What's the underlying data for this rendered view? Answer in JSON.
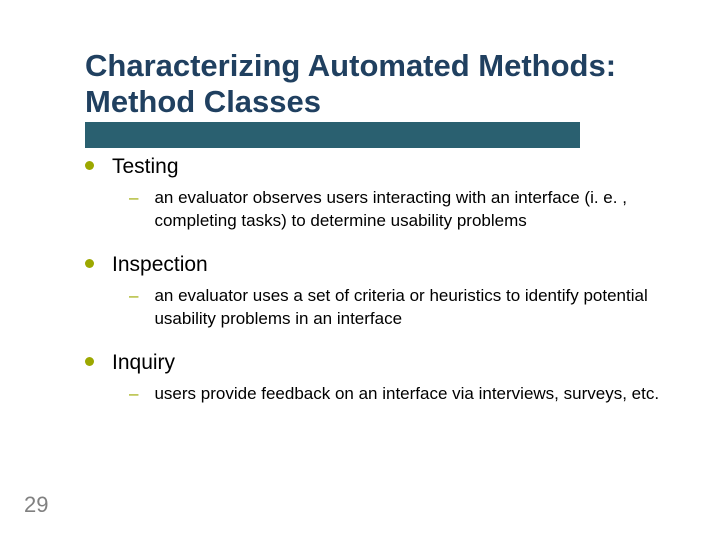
{
  "colors": {
    "title_color": "#204060",
    "underline_color": "#2a6070",
    "bullet_color": "#9ca800",
    "dash_color": "#9ca800",
    "body_text_color": "#000000",
    "page_number_color": "#808080",
    "background": "#ffffff"
  },
  "typography": {
    "title_fontsize": 31,
    "top_item_fontsize": 21,
    "sub_item_fontsize": 17,
    "page_number_fontsize": 22,
    "font_family": "Arial"
  },
  "layout": {
    "underline_width": 495,
    "underline_height": 26
  },
  "title": "Characterizing Automated Methods: Method Classes",
  "items": [
    {
      "label": "Testing",
      "sub": "an evaluator observes users interacting with an interface (i. e. , completing tasks) to determine usability problems"
    },
    {
      "label": "Inspection",
      "sub": "an evaluator uses a set of criteria or heuristics to identify potential usability problems in an interface"
    },
    {
      "label": "Inquiry",
      "sub": "users provide feedback on an interface via interviews, surveys, etc."
    }
  ],
  "page_number": "29"
}
